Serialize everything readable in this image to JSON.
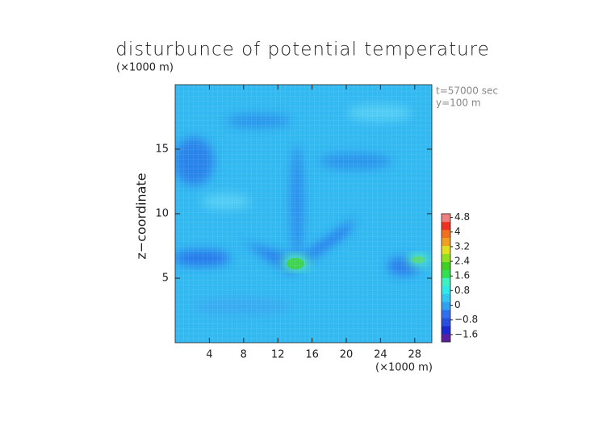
{
  "chart_data": {
    "type": "contour",
    "title": "disturbunce of potential temperature",
    "y_unit_label": "(×1000 m)",
    "x_unit_label": "(×1000 m)",
    "ylabel": "z−coordinate",
    "annotations": [
      "t=57000 sec",
      "y=100 m"
    ],
    "xlim": [
      0,
      30
    ],
    "xticks": [
      4,
      8,
      12,
      16,
      20,
      24,
      28
    ],
    "ylim": [
      0,
      20
    ],
    "yticks": [
      5,
      10,
      15
    ],
    "grid": true,
    "colorbar": {
      "clim": [
        -2,
        5
      ],
      "ticks": [
        {
          "value": -1.6,
          "label": "−1.6"
        },
        {
          "value": -0.8,
          "label": "−0.8"
        },
        0,
        0.8,
        1.6,
        2.4,
        3.2,
        4,
        4.8
      ],
      "colors": [
        "#5a1ea0",
        "#1a2ad0",
        "#2850e0",
        "#3070f0",
        "#30a0f0",
        "#30c8f0",
        "#30e8e8",
        "#40f0c0",
        "#30e050",
        "#40d020",
        "#90e020",
        "#e0e020",
        "#f0a020",
        "#f07020",
        "#f03020",
        "#f08080"
      ]
    }
  }
}
